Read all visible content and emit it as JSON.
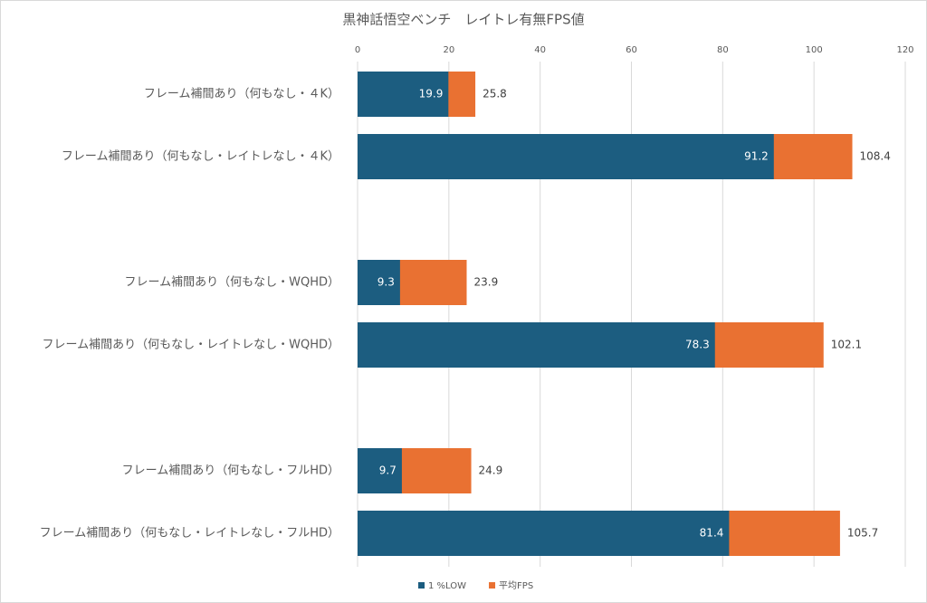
{
  "chart_data": {
    "type": "bar",
    "orientation": "horizontal",
    "overlap": true,
    "title": "黒神話悟空ベンチ　レイトレ有無FPS値",
    "categories": [
      "フレーム補間あり（何もなし・４K）",
      "フレーム補間あり（何もなし・レイトレなし・４K）",
      "フレーム補間あり（何もなし・WQHD）",
      "フレーム補間あり（何もなし・レイトレなし・WQHD）",
      "フレーム補間あり（何もなし・フルHD）",
      "フレーム補間あり（何もなし・レイトレなし・フルHD）"
    ],
    "series": [
      {
        "name": "1 %LOW",
        "color": "#1c5d80",
        "values": [
          19.9,
          91.2,
          9.3,
          78.3,
          9.7,
          81.4
        ]
      },
      {
        "name": "平均FPS",
        "color": "#e97132",
        "values": [
          25.8,
          108.4,
          23.9,
          102.1,
          24.9,
          105.7
        ]
      }
    ],
    "xlim": [
      0,
      120
    ],
    "xticks": [
      0,
      20,
      40,
      60,
      80,
      100,
      120
    ],
    "grid": true,
    "legend": "bottom"
  }
}
